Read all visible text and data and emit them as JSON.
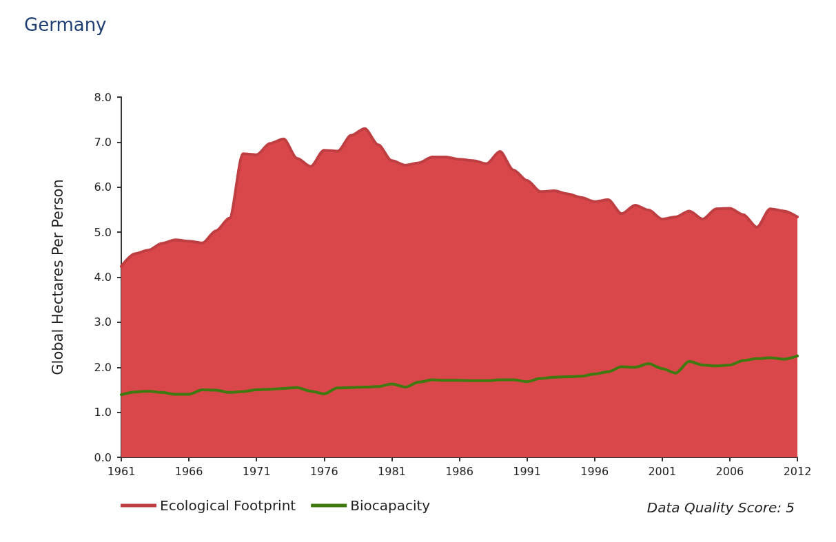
{
  "chart_data": {
    "type": "area",
    "title": "Germany",
    "ylabel": "Global Hectares Per Person",
    "categories": [
      "1961",
      null,
      null,
      null,
      null,
      "1966",
      null,
      null,
      null,
      null,
      "1971",
      null,
      null,
      null,
      null,
      "1976",
      null,
      null,
      null,
      null,
      "1981",
      null,
      null,
      null,
      null,
      "1986",
      null,
      null,
      null,
      null,
      "1991",
      null,
      null,
      null,
      null,
      "1996",
      null,
      null,
      null,
      null,
      "2001",
      null,
      null,
      null,
      null,
      "2006",
      null,
      null,
      null,
      null,
      "2012"
    ],
    "series": [
      {
        "name": "Ecological Footprint",
        "color": "#d9474a",
        "values": [
          4.24,
          4.52,
          4.6,
          4.75,
          4.83,
          4.8,
          4.76,
          5.03,
          5.31,
          6.74,
          6.72,
          6.97,
          7.07,
          6.64,
          6.46,
          6.82,
          6.8,
          7.15,
          7.3,
          6.94,
          6.59,
          6.49,
          6.54,
          6.67,
          6.67,
          6.62,
          6.59,
          6.52,
          6.79,
          6.38,
          6.15,
          5.9,
          5.92,
          5.85,
          5.77,
          5.68,
          5.72,
          5.41,
          5.6,
          5.49,
          5.29,
          5.34,
          5.47,
          5.29,
          5.52,
          5.53,
          5.39,
          5.11,
          5.52,
          5.47,
          5.34
        ]
      },
      {
        "name": "Biocapacity",
        "type": "line",
        "color": "#3f7a10",
        "values": [
          1.39,
          1.45,
          1.47,
          1.44,
          1.4,
          1.4,
          1.5,
          1.49,
          1.44,
          1.46,
          1.5,
          1.51,
          1.53,
          1.55,
          1.47,
          1.41,
          1.54,
          1.55,
          1.56,
          1.57,
          1.63,
          1.56,
          1.67,
          1.72,
          1.71,
          1.71,
          1.7,
          1.7,
          1.72,
          1.72,
          1.68,
          1.75,
          1.78,
          1.79,
          1.8,
          1.85,
          1.9,
          2.01,
          2.0,
          2.08,
          1.97,
          1.87,
          2.13,
          2.05,
          2.03,
          2.05,
          2.15,
          2.19,
          2.21,
          2.18,
          2.25
        ]
      }
    ],
    "ylim": [
      0,
      8
    ],
    "yticks": [
      {
        "value": 0,
        "label": "0.0"
      },
      {
        "value": 1,
        "label": "1.0"
      },
      {
        "value": 2,
        "label": "2.0"
      },
      {
        "value": 3,
        "label": "3.0"
      },
      {
        "value": 4,
        "label": "4.0"
      },
      {
        "value": 5,
        "label": "5.0"
      },
      {
        "value": 6,
        "label": "6.0"
      },
      {
        "value": 7,
        "label": "7.0"
      },
      {
        "value": 8,
        "label": "8.0"
      }
    ],
    "grid": false,
    "legend": "bottom",
    "marker": "none",
    "line_style": "solid",
    "annotations": [
      "Data Quality Score: 5"
    ]
  }
}
